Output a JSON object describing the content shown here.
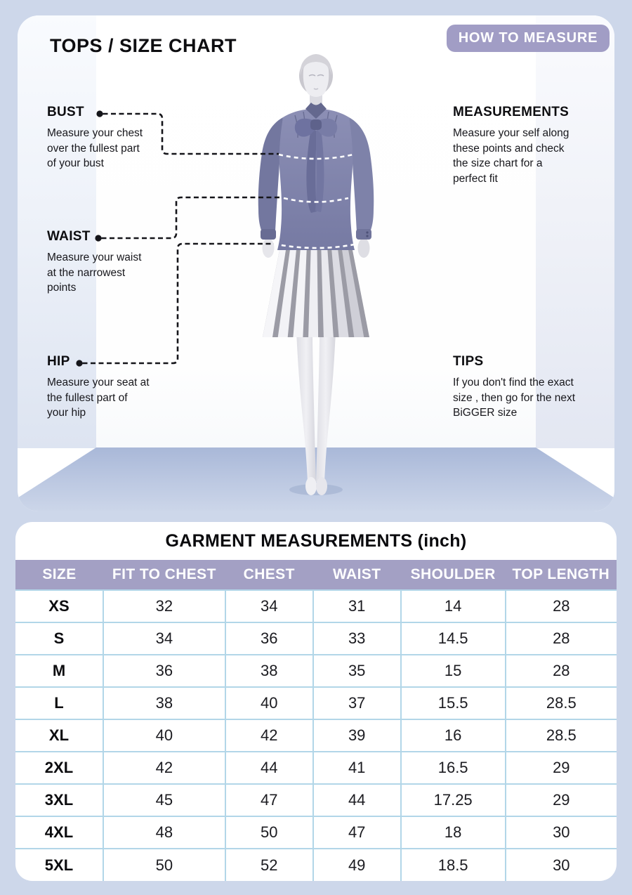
{
  "colors": {
    "page_bg": "#cdd7ea",
    "badge_bg": "#a19dc5",
    "table_header_bg": "#a3a0c4",
    "grid_line": "#b2d6e8",
    "blouse": "#8184ad",
    "floor": "#b3c0dd"
  },
  "header": {
    "title": "TOPS / SIZE CHART",
    "badge": "HOW TO MEASURE"
  },
  "annotations": {
    "bust": {
      "label": "BUST",
      "description": "Measure your chest\nover the fullest part\nof your bust"
    },
    "waist": {
      "label": "WAIST",
      "description": "Measure your waist\nat the narrowest\npoints"
    },
    "hip": {
      "label": "HIP",
      "description": "Measure your seat at\nthe fullest part of\nyour hip"
    },
    "measurements": {
      "label": "MEASUREMENTS",
      "description": "Measure your self along\nthese points and check\nthe size chart for a\nperfect fit"
    },
    "tips": {
      "label": "TIPS",
      "description": "If you don't find the exact\nsize , then go for the next\nBiGGER size"
    }
  },
  "figure": {
    "name": "mannequin wearing bow blouse and pleated skirt",
    "measure_lines": [
      "bust",
      "waist",
      "hip"
    ]
  },
  "table": {
    "title": "GARMENT MEASUREMENTS (inch)",
    "columns": [
      "SIZE",
      "FIT TO CHEST",
      "CHEST",
      "WAIST",
      "SHOULDER",
      "TOP LENGTH"
    ],
    "rows": [
      [
        "XS",
        "32",
        "34",
        "31",
        "14",
        "28"
      ],
      [
        "S",
        "34",
        "36",
        "33",
        "14.5",
        "28"
      ],
      [
        "M",
        "36",
        "38",
        "35",
        "15",
        "28"
      ],
      [
        "L",
        "38",
        "40",
        "37",
        "15.5",
        "28.5"
      ],
      [
        "XL",
        "40",
        "42",
        "39",
        "16",
        "28.5"
      ],
      [
        "2XL",
        "42",
        "44",
        "41",
        "16.5",
        "29"
      ],
      [
        "3XL",
        "45",
        "47",
        "44",
        "17.25",
        "29"
      ],
      [
        "4XL",
        "48",
        "50",
        "47",
        "18",
        "30"
      ],
      [
        "5XL",
        "50",
        "52",
        "49",
        "18.5",
        "30"
      ]
    ]
  }
}
